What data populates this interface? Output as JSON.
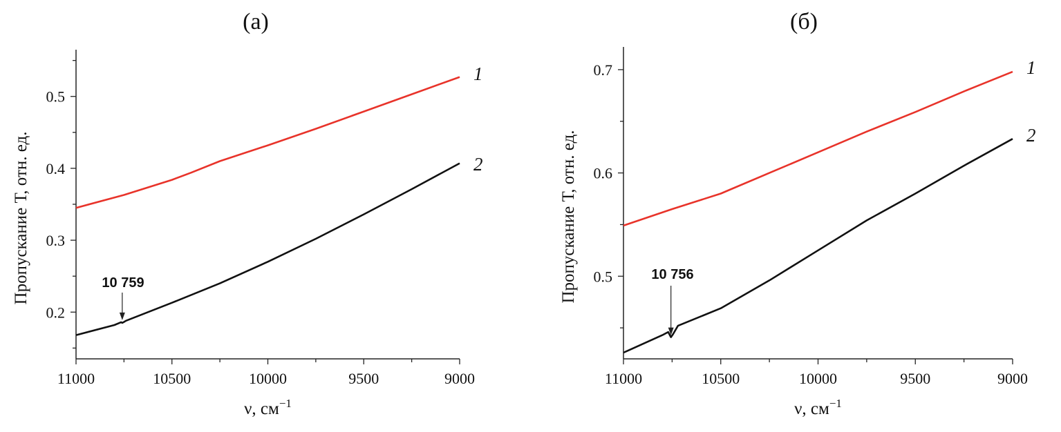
{
  "colors": {
    "series_1": "#e8332a",
    "series_2": "#111111",
    "axis": "#222222"
  },
  "chart_data": [
    {
      "type": "line",
      "title": "(а)",
      "xlabel": "ν, см",
      "xlabel_sup": "−1",
      "ylabel": "Пропускание Т, отн. ед.",
      "xlim": [
        11000,
        9000
      ],
      "ylim": [
        0.135,
        0.565
      ],
      "x_ticks": [
        11000,
        10500,
        10000,
        9500,
        9000
      ],
      "x_tick_labels": [
        "11000",
        "10500",
        "10000",
        "9500",
        "9000"
      ],
      "y_ticks": [
        0.2,
        0.3,
        0.4,
        0.5
      ],
      "y_tick_labels": [
        "0.2",
        "0.3",
        "0.4",
        "0.5"
      ],
      "grid": false,
      "series": [
        {
          "name": "1",
          "color": "#e8332a",
          "x": [
            11000,
            10750,
            10500,
            10400,
            10250,
            10000,
            9750,
            9500,
            9250,
            9000
          ],
          "y": [
            0.345,
            0.363,
            0.384,
            0.394,
            0.41,
            0.432,
            0.455,
            0.479,
            0.503,
            0.527
          ]
        },
        {
          "name": "2",
          "color": "#111111",
          "x": [
            11000,
            10800,
            10765,
            10759,
            10752,
            10740,
            10500,
            10250,
            10000,
            9750,
            9500,
            9250,
            9000
          ],
          "y": [
            0.168,
            0.182,
            0.186,
            0.185,
            0.186,
            0.188,
            0.213,
            0.24,
            0.27,
            0.302,
            0.336,
            0.371,
            0.407
          ]
        }
      ],
      "annotations": [
        {
          "text": "10 759",
          "x": 10759,
          "y": 0.186
        }
      ]
    },
    {
      "type": "line",
      "title": "(б)",
      "xlabel": "ν, см",
      "xlabel_sup": "−1",
      "ylabel": "Пропускание Т, отн. ед.",
      "xlim": [
        11000,
        9000
      ],
      "ylim": [
        0.42,
        0.722
      ],
      "x_ticks": [
        11000,
        10500,
        10000,
        9500,
        9000
      ],
      "x_tick_labels": [
        "11000",
        "10500",
        "10000",
        "9500",
        "9000"
      ],
      "y_ticks": [
        0.5,
        0.6,
        0.7
      ],
      "y_tick_labels": [
        "0.5",
        "0.6",
        "0.7"
      ],
      "grid": false,
      "series": [
        {
          "name": "1",
          "color": "#e8332a",
          "x": [
            11000,
            10750,
            10500,
            10450,
            10250,
            10000,
            9750,
            9500,
            9250,
            9000
          ],
          "y": [
            0.549,
            0.565,
            0.58,
            0.584,
            0.6,
            0.62,
            0.64,
            0.659,
            0.679,
            0.698
          ]
        },
        {
          "name": "2",
          "color": "#111111",
          "x": [
            11000,
            10800,
            10770,
            10756,
            10745,
            10720,
            10500,
            10250,
            10000,
            9750,
            9500,
            9250,
            9000
          ],
          "y": [
            0.426,
            0.443,
            0.446,
            0.441,
            0.444,
            0.452,
            0.469,
            0.496,
            0.525,
            0.554,
            0.58,
            0.607,
            0.633
          ]
        }
      ],
      "annotations": [
        {
          "text": "10 756",
          "x": 10756,
          "y": 0.441
        }
      ]
    }
  ]
}
